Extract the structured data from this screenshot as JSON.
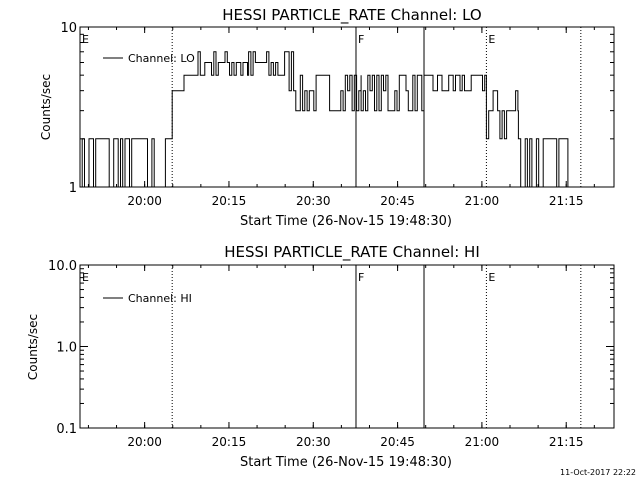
{
  "footer": {
    "timestamp": "11-Oct-2017 22:22"
  },
  "chart_data": [
    {
      "type": "line",
      "title": "HESSI PARTICLE_RATE Channel: LO",
      "xlabel": "Start Time (26-Nov-15 19:48:30)",
      "ylabel": "Counts/sec",
      "yscale": "log",
      "ylim": [
        1,
        10
      ],
      "xlim_minutes": [
        0,
        95
      ],
      "y_ticks": [
        {
          "value": 1,
          "label": "1"
        },
        {
          "value": 10,
          "label": "10"
        }
      ],
      "x_ticks": [
        {
          "minutes": 11.5,
          "label": "20:00"
        },
        {
          "minutes": 26.5,
          "label": "20:15"
        },
        {
          "minutes": 41.5,
          "label": "20:30"
        },
        {
          "minutes": 56.5,
          "label": "20:45"
        },
        {
          "minutes": 71.5,
          "label": "21:00"
        },
        {
          "minutes": 86.5,
          "label": "21:15"
        }
      ],
      "legend": {
        "position": "top-left",
        "entries": [
          "Channel: LO"
        ]
      },
      "markers": [
        {
          "minutes": 0,
          "label": "E",
          "style": "none"
        },
        {
          "minutes": 16.4,
          "label": "",
          "style": "dotted"
        },
        {
          "minutes": 49.1,
          "label": "F",
          "style": "solid"
        },
        {
          "minutes": 61.2,
          "label": "",
          "style": "solid"
        },
        {
          "minutes": 72.3,
          "label": "E",
          "style": "dotted"
        },
        {
          "minutes": 89.1,
          "label": "",
          "style": "dotted"
        }
      ],
      "series": [
        {
          "name": "Channel: LO",
          "segments": [
            {
              "x_start": 0,
              "x_end": 16.4,
              "type": "noise",
              "values": [
                1,
                2
              ]
            },
            {
              "x_start": 16.4,
              "x_end": 18.5,
              "type": "level",
              "values": [
                4
              ]
            },
            {
              "x_start": 18.5,
              "x_end": 21,
              "type": "level",
              "values": [
                5
              ]
            },
            {
              "x_start": 21,
              "x_end": 30,
              "type": "noise",
              "values": [
                5,
                6,
                7
              ]
            },
            {
              "x_start": 30,
              "x_end": 38,
              "type": "noise",
              "values": [
                4,
                5,
                6,
                7
              ]
            },
            {
              "x_start": 38,
              "x_end": 50,
              "type": "noise",
              "values": [
                3,
                4,
                5
              ]
            },
            {
              "x_start": 50,
              "x_end": 62,
              "type": "noise",
              "values": [
                3,
                4,
                5
              ]
            },
            {
              "x_start": 62,
              "x_end": 72.3,
              "type": "noise",
              "values": [
                4,
                5
              ]
            },
            {
              "x_start": 72.3,
              "x_end": 78,
              "type": "noise",
              "values": [
                2,
                3,
                4
              ]
            },
            {
              "x_start": 78,
              "x_end": 89.1,
              "type": "noise",
              "values": [
                1,
                2
              ]
            }
          ]
        }
      ]
    },
    {
      "type": "line",
      "title": "HESSI PARTICLE_RATE Channel: HI",
      "xlabel": "Start Time (26-Nov-15 19:48:30)",
      "ylabel": "Counts/sec",
      "yscale": "log",
      "ylim": [
        0.1,
        10
      ],
      "xlim_minutes": [
        0,
        95
      ],
      "y_ticks": [
        {
          "value": 0.1,
          "label": "0.1"
        },
        {
          "value": 1,
          "label": "1.0"
        },
        {
          "value": 10,
          "label": "10.0"
        }
      ],
      "x_ticks": [
        {
          "minutes": 11.5,
          "label": "20:00"
        },
        {
          "minutes": 26.5,
          "label": "20:15"
        },
        {
          "minutes": 41.5,
          "label": "20:30"
        },
        {
          "minutes": 56.5,
          "label": "20:45"
        },
        {
          "minutes": 71.5,
          "label": "21:00"
        },
        {
          "minutes": 86.5,
          "label": "21:15"
        }
      ],
      "legend": {
        "position": "top-left",
        "entries": [
          "Channel: HI"
        ]
      },
      "markers": [
        {
          "minutes": 0,
          "label": "E",
          "style": "none"
        },
        {
          "minutes": 16.4,
          "label": "",
          "style": "dotted"
        },
        {
          "minutes": 49.1,
          "label": "F",
          "style": "solid"
        },
        {
          "minutes": 61.2,
          "label": "",
          "style": "solid"
        },
        {
          "minutes": 72.3,
          "label": "E",
          "style": "dotted"
        },
        {
          "minutes": 89.1,
          "label": "",
          "style": "dotted"
        }
      ],
      "series": [
        {
          "name": "Channel: HI",
          "segments": []
        }
      ]
    }
  ]
}
